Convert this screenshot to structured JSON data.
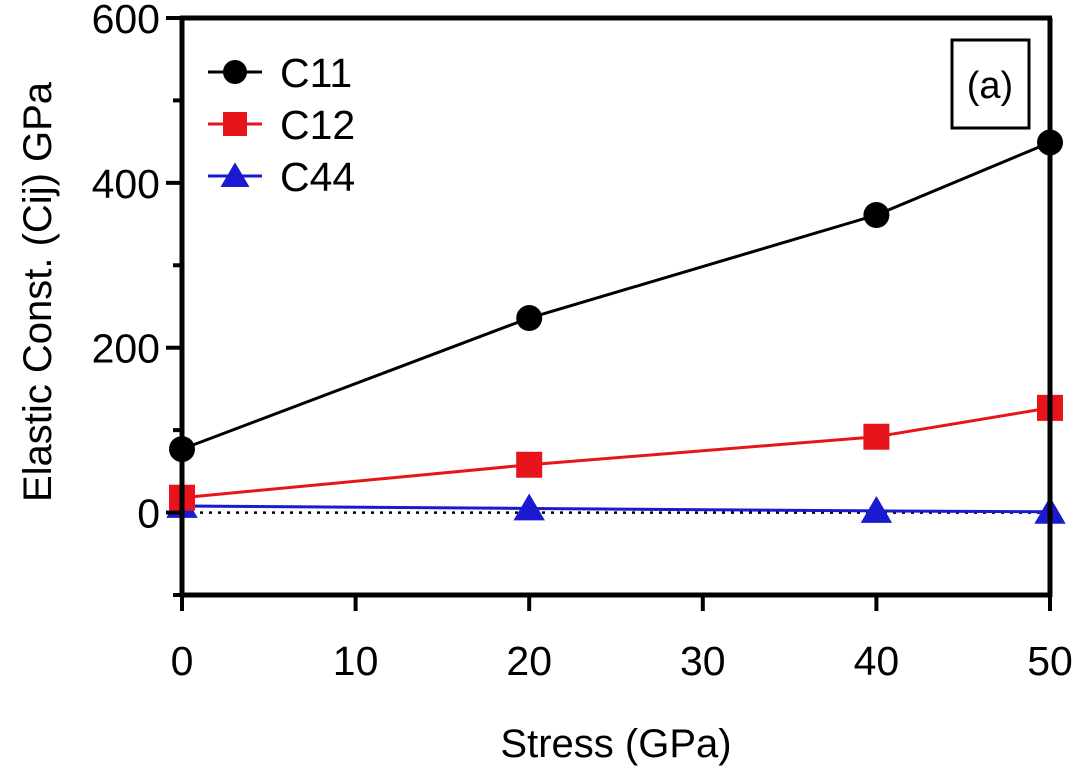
{
  "chart_data": {
    "type": "line",
    "title": "",
    "panel_label": "(a)",
    "xlabel": "Stress (GPa)",
    "ylabel": "Elastic Const. (Cij) GPa",
    "xlim": [
      0,
      50
    ],
    "ylim": [
      -100,
      600
    ],
    "x_ticks": [
      0,
      10,
      20,
      30,
      40,
      50
    ],
    "y_ticks": [
      0,
      200,
      400,
      600
    ],
    "y_minor_ticks": [
      -100,
      100,
      300,
      500
    ],
    "zero_line": "dotted",
    "legend_position": "top-left",
    "series": [
      {
        "name": "C11",
        "marker": "circle",
        "color": "#000000",
        "x": [
          0,
          20,
          40,
          50
        ],
        "values": [
          77,
          236,
          361,
          449
        ]
      },
      {
        "name": "C12",
        "marker": "square",
        "color": "#e8141b",
        "x": [
          0,
          20,
          40,
          50
        ],
        "values": [
          18,
          58,
          92,
          127
        ]
      },
      {
        "name": "C44",
        "marker": "triangle",
        "color": "#1a1ad0",
        "x": [
          0,
          20,
          40,
          50
        ],
        "values": [
          8,
          5,
          2,
          1
        ]
      }
    ]
  }
}
